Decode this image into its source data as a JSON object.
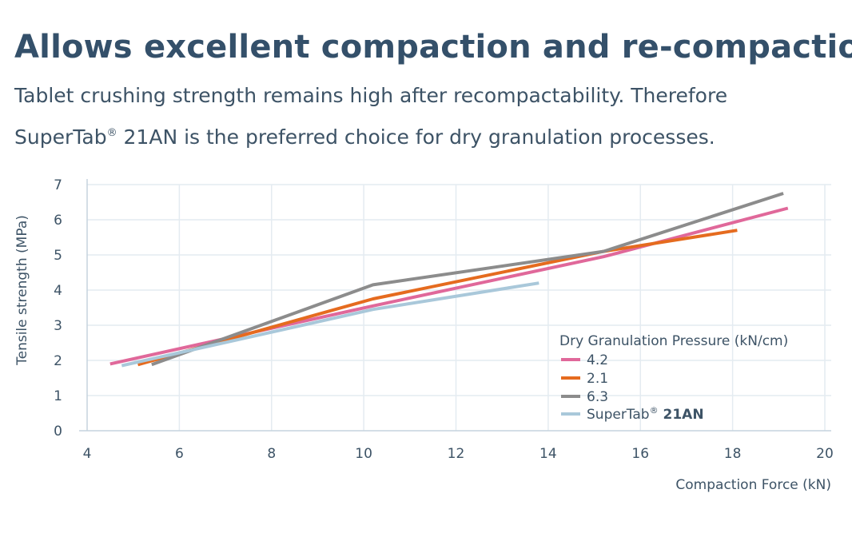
{
  "header": {
    "title": "Allows excellent compaction and re-compaction",
    "subtitle_line1": "Tablet crushing strength remains high after recompactability. Therefore",
    "subtitle_line2_pre": "SuperTab",
    "subtitle_line2_reg": "®",
    "subtitle_line2_post": " 21AN is the preferred choice for dry granulation processes."
  },
  "chart_data": {
    "type": "line",
    "title": "",
    "xlabel": "Compaction Force (kN)",
    "ylabel": "Tensile strength (MPa)",
    "xlim": [
      4,
      20
    ],
    "ylim": [
      0,
      7
    ],
    "xticks": [
      4,
      6,
      8,
      10,
      12,
      14,
      16,
      18,
      20
    ],
    "yticks": [
      0,
      1,
      2,
      3,
      4,
      5,
      6,
      7
    ],
    "grid": true,
    "legend_title": "Dry Granulation Pressure (kN/cm)",
    "legend_position": "bottom-right",
    "series": [
      {
        "name": "4.2",
        "color": "#e0689a",
        "points": [
          [
            4.5,
            1.9
          ],
          [
            10.2,
            3.55
          ],
          [
            15.2,
            4.95
          ],
          [
            19.2,
            6.33
          ]
        ]
      },
      {
        "name": "2.1",
        "color": "#e56b1f",
        "points": [
          [
            5.1,
            1.88
          ],
          [
            10.2,
            3.75
          ],
          [
            15.2,
            5.1
          ],
          [
            18.1,
            5.7
          ]
        ]
      },
      {
        "name": "6.3",
        "color": "#8c8c8c",
        "points": [
          [
            5.4,
            1.88
          ],
          [
            10.2,
            4.15
          ],
          [
            15.2,
            5.1
          ],
          [
            19.1,
            6.75
          ]
        ]
      },
      {
        "name_pre": "SuperTab",
        "name_reg": "®",
        "name_bold": " 21AN",
        "color": "#a9c8da",
        "points": [
          [
            4.75,
            1.85
          ],
          [
            10.2,
            3.45
          ],
          [
            13.8,
            4.2
          ]
        ]
      }
    ]
  }
}
